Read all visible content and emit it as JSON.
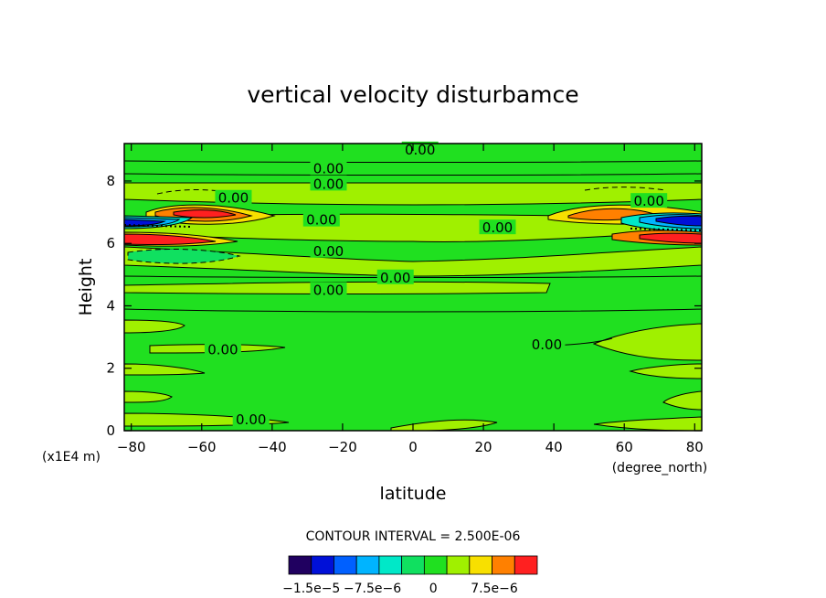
{
  "chart_data": {
    "type": "contour",
    "title": "vertical velocity disturbamce",
    "xlabel": "latitude",
    "ylabel": "Height",
    "x_units": "(degree_north)",
    "y_units": "(x1E4 m)",
    "xlim": [
      -82,
      82
    ],
    "ylim": [
      0,
      9.2
    ],
    "x_ticks": [
      -80,
      -60,
      -40,
      -20,
      0,
      20,
      40,
      60,
      80
    ],
    "y_ticks": [
      0,
      2,
      4,
      6,
      8
    ],
    "contour_interval_text": "CONTOUR INTERVAL = 2.500E-06",
    "contour_labels": [
      {
        "text": "0.00",
        "x": 2,
        "y": 9.0
      },
      {
        "text": "0.00",
        "x": -24,
        "y": 8.4
      },
      {
        "text": "0.00",
        "x": -24,
        "y": 7.9
      },
      {
        "text": "0.00",
        "x": -51,
        "y": 7.45
      },
      {
        "text": "0.00",
        "x": 67,
        "y": 7.35
      },
      {
        "text": "0.00",
        "x": -26,
        "y": 6.75
      },
      {
        "text": "0.00",
        "x": 24,
        "y": 6.5
      },
      {
        "text": "0.00",
        "x": -24,
        "y": 5.75
      },
      {
        "text": "0.00",
        "x": -5,
        "y": 4.9
      },
      {
        "text": "0.00",
        "x": -24,
        "y": 4.5
      },
      {
        "text": "0.00",
        "x": -54,
        "y": 2.6
      },
      {
        "text": "0.00",
        "x": 38,
        "y": 2.75
      },
      {
        "text": "0.00",
        "x": -46,
        "y": 0.35
      }
    ],
    "colorbar": {
      "min": -1.5e-05,
      "max": 1e-05,
      "interval": 2.5e-06,
      "colors": [
        "#200060",
        "#0010d8",
        "#0060ff",
        "#00b4ff",
        "#00e8c8",
        "#10e060",
        "#20e020",
        "#a0f000",
        "#f8e000",
        "#ff8000",
        "#ff2020"
      ],
      "tick_labels": [
        "−1.5e−5",
        "−7.5e−6",
        "0",
        "7.5e−6"
      ],
      "tick_values": [
        -1.5e-05,
        -7.5e-06,
        0,
        7.5e-06
      ]
    }
  }
}
